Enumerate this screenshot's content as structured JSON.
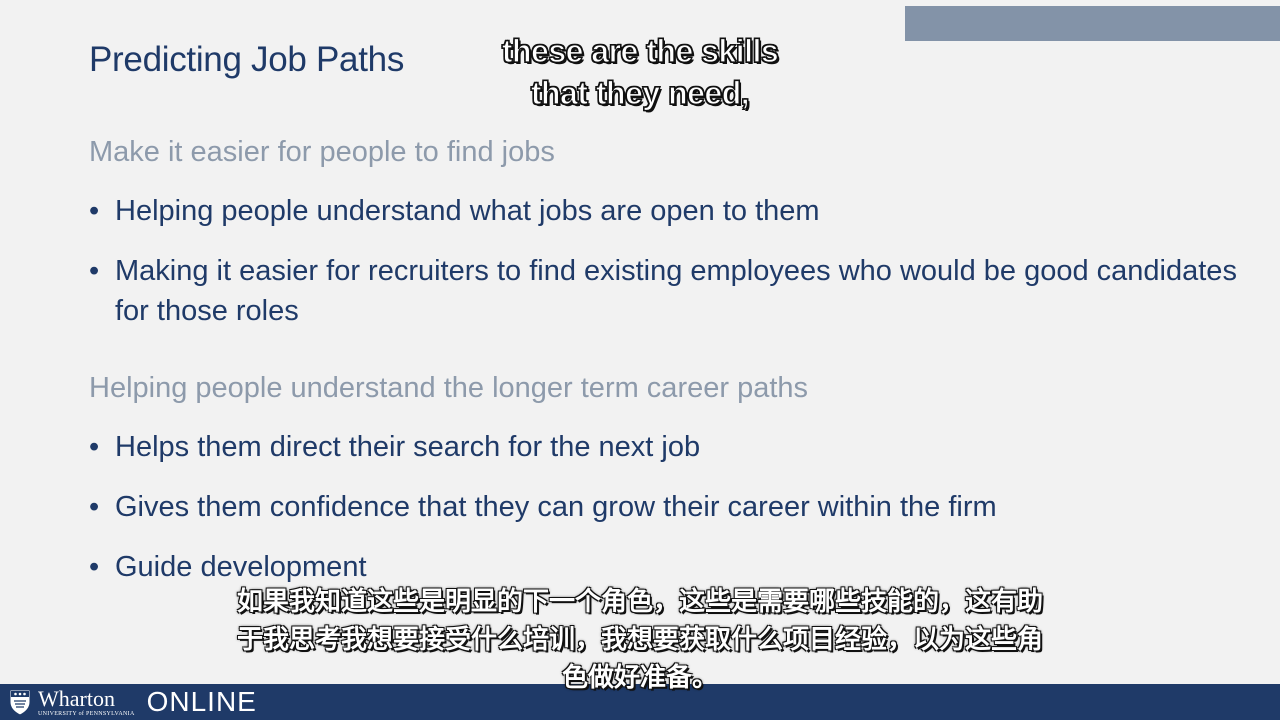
{
  "slide": {
    "title": "Predicting Job Paths",
    "sections": [
      {
        "heading": "Make it easier for people to find jobs",
        "bullets": [
          "Helping people understand what jobs are open to them",
          "Making it easier for recruiters to find existing employees who would be good candidates for those roles"
        ]
      },
      {
        "heading": "Helping people understand the longer term career paths",
        "bullets": [
          "Helps them direct their search for the next job",
          "Gives them confidence that they can grow their career within the firm",
          "Guide development"
        ]
      }
    ],
    "bullet_glyph": "•"
  },
  "subtitles": {
    "english": [
      "these are the skills",
      "that they need,"
    ],
    "chinese": [
      "如果我知道这些是明显的下一个角色，这些是需要哪些技能的，这有助",
      "于我思考我想要接受什么培训，我想要获取什么项目经验，以为这些角",
      "色做好准备。"
    ]
  },
  "footer": {
    "logo_name": "Wharton",
    "logo_subtext": "UNIVERSITY of PENNSYLVANIA",
    "logo_suffix": "ONLINE"
  },
  "colors": {
    "title": "#1f3a68",
    "heading": "#8d9aab",
    "accent_bar": "#8393a8",
    "footer": "#1f3a68",
    "background": "#f2f2f2"
  },
  "icons": {
    "logo": "penn-shield-icon"
  }
}
